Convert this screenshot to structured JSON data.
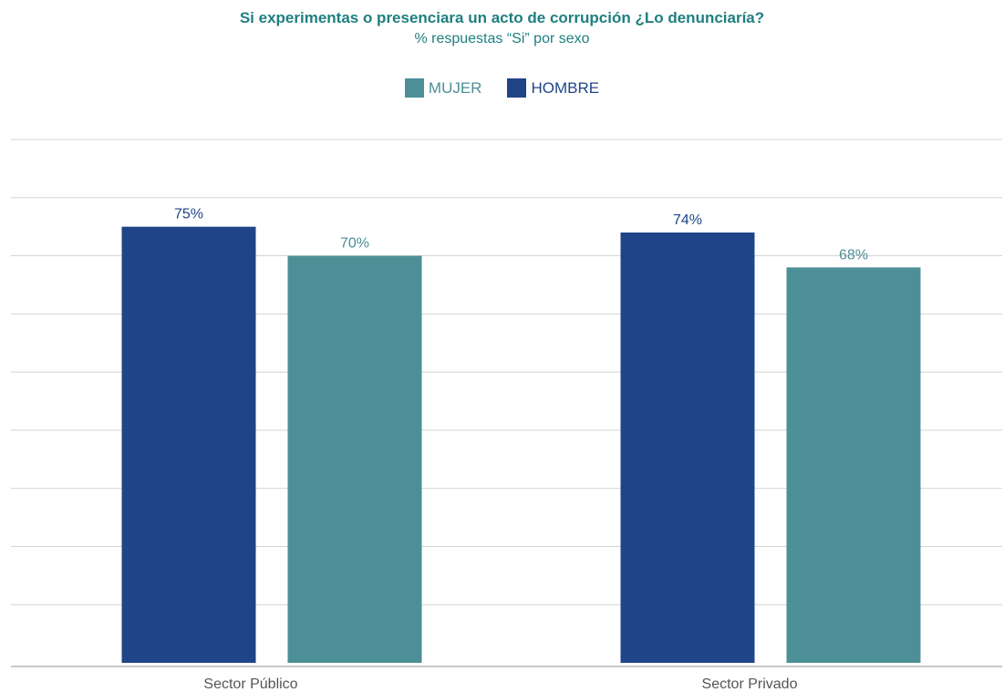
{
  "chart_data": {
    "type": "bar",
    "title": "Si experimentas o presenciara un acto de corrupción ¿Lo denunciaría?",
    "subtitle": "% respuestas “Si” por sexo",
    "categories": [
      "Sector Público",
      "Sector Privado"
    ],
    "series": [
      {
        "name": "HOMBRE",
        "values": [
          75,
          74
        ],
        "labels": [
          "75%",
          "74%"
        ],
        "color": "#1f4488"
      },
      {
        "name": "MUJER",
        "values": [
          70,
          68
        ],
        "labels": [
          "70%",
          "68%"
        ],
        "color": "#4c8f96"
      }
    ],
    "legend": {
      "placement": "top-center",
      "order": [
        "MUJER",
        "HOMBRE"
      ]
    },
    "ylim": [
      0,
      90
    ],
    "grid": true,
    "xlabel": "",
    "ylabel": ""
  }
}
